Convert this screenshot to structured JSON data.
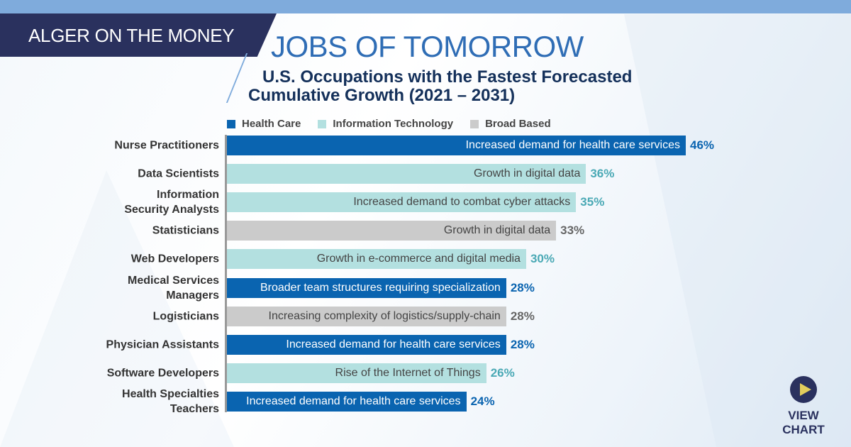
{
  "header": {
    "brand": "ALGER ON THE MONEY",
    "title": "JOBS OF TOMORROW"
  },
  "chart_data": {
    "type": "bar",
    "orientation": "horizontal",
    "title_line1": "U.S. Occupations with the Fastest Forecasted",
    "title_line2": "Cumulative Growth (2021 – 2031)",
    "legend": [
      {
        "name": "Health Care",
        "color": "#0a64b0"
      },
      {
        "name": "Information Technology",
        "color": "#b3e0e0"
      },
      {
        "name": "Broad Based",
        "color": "#cbcbcb"
      }
    ],
    "legend_position": "top",
    "xlim": [
      0,
      46
    ],
    "rows": [
      {
        "category": "Nurse Practitioners",
        "value": 46,
        "label": "46%",
        "group": 0,
        "reason": "Increased demand for health care services"
      },
      {
        "category": "Data Scientists",
        "value": 36,
        "label": "36%",
        "group": 1,
        "reason": "Growth in digital data"
      },
      {
        "category": "Information\nSecurity Analysts",
        "value": 35,
        "label": "35%",
        "group": 1,
        "reason": "Increased demand to combat cyber attacks"
      },
      {
        "category": "Statisticians",
        "value": 33,
        "label": "33%",
        "group": 2,
        "reason": "Growth in digital data"
      },
      {
        "category": "Web Developers",
        "value": 30,
        "label": "30%",
        "group": 1,
        "reason": "Growth in e-commerce and digital media"
      },
      {
        "category": "Medical Services\nManagers",
        "value": 28,
        "label": "28%",
        "group": 0,
        "reason": "Broader team structures requiring specialization"
      },
      {
        "category": "Logisticians",
        "value": 28,
        "label": "28%",
        "group": 2,
        "reason": "Increasing complexity of logistics/supply-chain"
      },
      {
        "category": "Physician Assistants",
        "value": 28,
        "label": "28%",
        "group": 0,
        "reason": "Increased demand for health care services"
      },
      {
        "category": "Software Developers",
        "value": 26,
        "label": "26%",
        "group": 1,
        "reason": "Rise of the Internet of Things"
      },
      {
        "category": "Health Specialties\nTeachers",
        "value": 24,
        "label": "24%",
        "group": 0,
        "reason": "Increased demand for health care services"
      }
    ]
  },
  "cta": {
    "label": "VIEW CHART",
    "icon": "play-icon"
  }
}
